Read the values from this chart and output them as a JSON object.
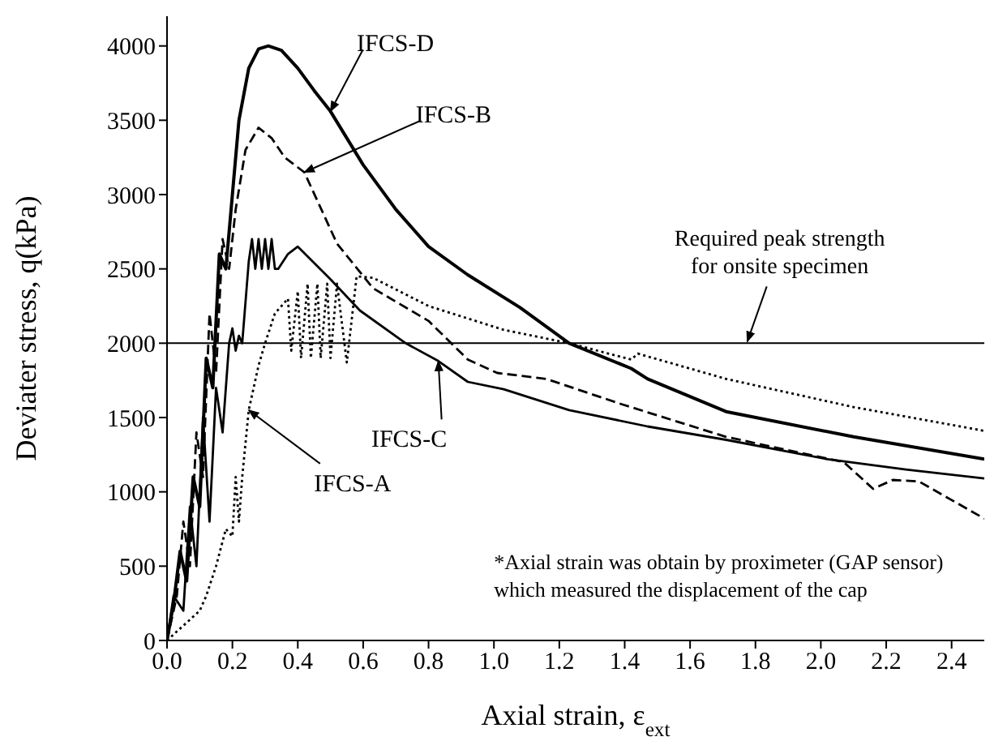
{
  "chart_data": {
    "type": "line",
    "xlabel": "Axial strain, ε$_{ext}$",
    "ylabel": "Deviater stress, q(kPa)",
    "xlim": [
      0,
      2.5
    ],
    "xticks": [
      {
        "value": 0,
        "label": "0.0"
      },
      {
        "value": 0.2,
        "label": "0.2"
      },
      {
        "value": 0.4,
        "label": "0.4"
      },
      {
        "value": 0.6,
        "label": "0.6"
      },
      {
        "value": 0.8,
        "label": "0.8"
      },
      {
        "value": 1,
        "label": "1.0"
      },
      {
        "value": 1.2,
        "label": "1.2"
      },
      {
        "value": 1.4,
        "label": "1.4"
      },
      {
        "value": 1.6,
        "label": "1.6"
      },
      {
        "value": 1.8,
        "label": "1.8"
      },
      {
        "value": 2,
        "label": "2.0"
      },
      {
        "value": 2.2,
        "label": "2.2"
      },
      {
        "value": 2.4,
        "label": "2.4"
      }
    ],
    "ylim": [
      0,
      4200
    ],
    "yticks": [
      0,
      500,
      1000,
      1500,
      2000,
      2500,
      3000,
      3500,
      4000
    ],
    "marker": "none",
    "series": [
      {
        "color": "#000000",
        "line_style": "dotted",
        "x": [
          0,
          0.05,
          0.1,
          0.12,
          0.15,
          0.18,
          0.2,
          0.21,
          0.22,
          0.23,
          0.25,
          0.28,
          0.3,
          0.33,
          0.35,
          0.37,
          0.38,
          0.4,
          0.41,
          0.43,
          0.44,
          0.46,
          0.47,
          0.49,
          0.5,
          0.52,
          0.55,
          0.58,
          0.63,
          0.8,
          1.03,
          1.23,
          1.42,
          1.44,
          1.71,
          2.1,
          2.5
        ],
        "values": [
          0,
          100,
          200,
          300,
          500,
          750,
          700,
          1100,
          800,
          1100,
          1550,
          1850,
          2000,
          2200,
          2250,
          2300,
          1950,
          2350,
          1900,
          2400,
          1900,
          2400,
          1900,
          2400,
          1900,
          2400,
          1870,
          2450,
          2440,
          2250,
          2090,
          2000,
          1890,
          1930,
          1760,
          1570,
          1410
        ]
      },
      {
        "color": "#000000",
        "line_style": "dashed",
        "x": [
          0,
          0.03,
          0.05,
          0.07,
          0.09,
          0.11,
          0.13,
          0.15,
          0.17,
          0.19,
          0.21,
          0.24,
          0.28,
          0.32,
          0.36,
          0.42,
          0.52,
          0.63,
          0.8,
          0.92,
          1.01,
          1.16,
          1.39,
          1.71,
          2.07,
          2.16,
          2.22,
          2.3,
          2.5
        ],
        "values": [
          0,
          300,
          800,
          500,
          1400,
          1100,
          2200,
          1800,
          2700,
          2500,
          2900,
          3300,
          3450,
          3380,
          3250,
          3150,
          2670,
          2370,
          2150,
          1890,
          1800,
          1760,
          1590,
          1370,
          1200,
          1020,
          1080,
          1070,
          820
        ]
      },
      {
        "color": "#000000",
        "line_style": "solid",
        "x": [
          0,
          0.02,
          0.05,
          0.07,
          0.09,
          0.11,
          0.13,
          0.15,
          0.17,
          0.19,
          0.2,
          0.21,
          0.22,
          0.23,
          0.25,
          0.26,
          0.27,
          0.28,
          0.29,
          0.3,
          0.31,
          0.32,
          0.33,
          0.34,
          0.37,
          0.4,
          0.5,
          0.59,
          0.73,
          0.83,
          0.92,
          1.03,
          1.23,
          1.47,
          1.71,
          2.02,
          2.26,
          2.5
        ],
        "values": [
          0,
          300,
          200,
          900,
          500,
          1500,
          800,
          1700,
          1400,
          2000,
          2100,
          1950,
          2050,
          2000,
          2550,
          2700,
          2500,
          2700,
          2500,
          2700,
          2500,
          2700,
          2500,
          2500,
          2600,
          2650,
          2430,
          2220,
          2000,
          1880,
          1740,
          1690,
          1550,
          1440,
          1350,
          1220,
          1150,
          1090
        ]
      },
      {
        "color": "#000000",
        "line_style": "solid",
        "x": [
          0,
          0.02,
          0.04,
          0.06,
          0.08,
          0.1,
          0.12,
          0.14,
          0.16,
          0.18,
          0.2,
          0.22,
          0.25,
          0.28,
          0.31,
          0.35,
          0.4,
          0.45,
          0.5,
          0.55,
          0.6,
          0.7,
          0.8,
          0.92,
          1.08,
          1.23,
          1.42,
          1.47,
          1.71,
          2.1,
          2.5
        ],
        "values": [
          0,
          250,
          600,
          400,
          1100,
          900,
          1900,
          1700,
          2600,
          2500,
          3000,
          3500,
          3850,
          3980,
          4000,
          3970,
          3850,
          3700,
          3560,
          3380,
          3200,
          2900,
          2650,
          2460,
          2240,
          2000,
          1830,
          1760,
          1540,
          1370,
          1220
        ]
      }
    ],
    "ref_lines": [
      {
        "axis": "y",
        "value": 2000,
        "label": "Required peak strength\nfor onsite specimen",
        "color": "#000000"
      }
    ],
    "annotations": [
      {
        "text": "IFCS-A",
        "x": 0.25,
        "y": 1550
      },
      {
        "text": "IFCS-B",
        "x": 0.42,
        "y": 3150
      },
      {
        "text": "IFCS-C",
        "x": 0.83,
        "y": 1880
      },
      {
        "text": "IFCS-D",
        "x": 0.5,
        "y": 3560
      },
      "*Axial strain was obtain by proximeter (GAP sensor)\nwhich measured the displacement of the cap"
    ]
  }
}
